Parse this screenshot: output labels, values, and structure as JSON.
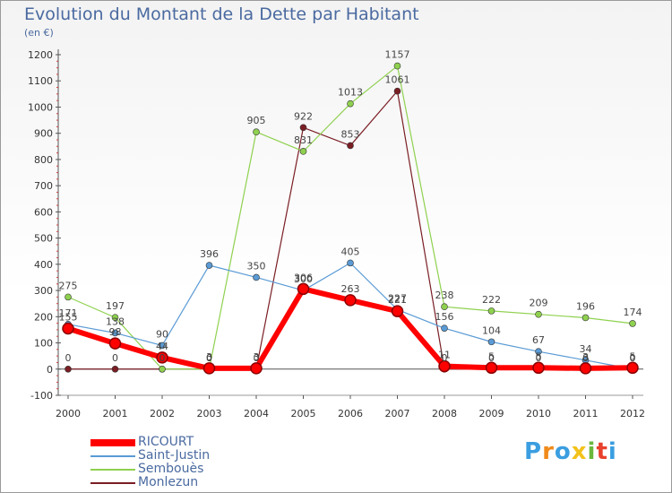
{
  "chart_data": {
    "type": "line",
    "title": "Evolution du Montant de la Dette par Habitant",
    "unit_label": "(en €)",
    "xlabel": "",
    "ylabel": "",
    "ylim": [
      -100,
      1200
    ],
    "yticks": [
      -100,
      0,
      100,
      200,
      300,
      400,
      500,
      600,
      700,
      800,
      900,
      1000,
      1100,
      1200
    ],
    "categories": [
      "2000",
      "2001",
      "2002",
      "2003",
      "2004",
      "2005",
      "2006",
      "2007",
      "2008",
      "2009",
      "2010",
      "2011",
      "2012"
    ],
    "series": [
      {
        "name": "RICOURT",
        "color": "#ff0000",
        "values": [
          155,
          98,
          44,
          3,
          3,
          306,
          263,
          221,
          11,
          5,
          5,
          3,
          5
        ]
      },
      {
        "name": "Saint-Justin",
        "color": "#5a9bd5",
        "values": [
          171,
          138,
          90,
          396,
          350,
          300,
          405,
          227,
          156,
          104,
          67,
          34,
          0
        ]
      },
      {
        "name": "Sembouès",
        "color": "#8fd14f",
        "values": [
          275,
          197,
          0,
          0,
          905,
          831,
          1013,
          1157,
          238,
          222,
          209,
          196,
          174
        ]
      },
      {
        "name": "Monlezun",
        "color": "#7a1e24",
        "values": [
          0,
          0,
          0,
          0,
          0,
          922,
          853,
          1061,
          0,
          0,
          0,
          0,
          0
        ]
      }
    ],
    "legend_position": "bottom-left",
    "grid": false
  },
  "brand": {
    "text": "Proxiti",
    "colors": [
      "#3a9ee0",
      "#f08a1a",
      "#3a9ee0",
      "#f2c21b",
      "#6ab73c",
      "#e8412c",
      "#3a9ee0"
    ]
  }
}
